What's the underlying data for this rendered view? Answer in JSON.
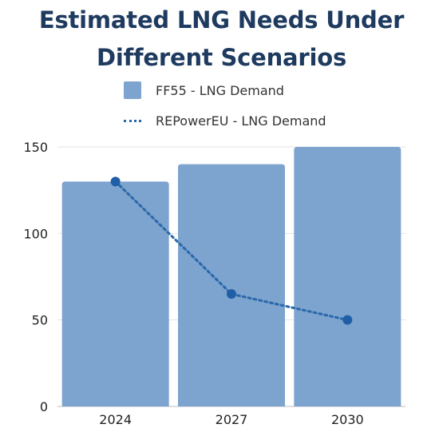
{
  "chart_data": {
    "type": "bar",
    "title": "Estimated LNG Needs Under Different Scenarios",
    "title_lines": [
      "Estimated LNG Needs Under",
      "Different Scenarios"
    ],
    "categories": [
      "2024",
      "2027",
      "2030"
    ],
    "series": [
      {
        "name": "FF55 - LNG Demand",
        "kind": "bar",
        "color": "#7da3cf",
        "values": [
          130,
          140,
          150
        ]
      },
      {
        "name": "REPowerEU - LNG Demand",
        "kind": "line",
        "style": "dotted",
        "color": "#2a68ab",
        "values": [
          130,
          65,
          50
        ]
      }
    ],
    "ylim": [
      0,
      150
    ],
    "yticks": [
      "0",
      "50",
      "100",
      "150"
    ],
    "grid": true,
    "legend_position": "top"
  }
}
